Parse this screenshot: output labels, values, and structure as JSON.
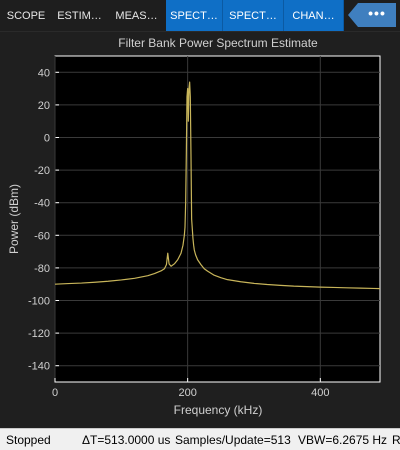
{
  "toolstrip": {
    "tabs": [
      {
        "label": "SCOPE",
        "active": false
      },
      {
        "label": "ESTIM…",
        "active": false
      },
      {
        "label": "MEAS…",
        "active": false
      },
      {
        "label": "SPECT…",
        "active": true
      },
      {
        "label": "SPECT…",
        "active": true
      },
      {
        "label": "CHAN…",
        "active": true
      }
    ],
    "more_label": "•••"
  },
  "status": {
    "state": "Stopped",
    "delta_t": "ΔT=513.0000 us",
    "samples_update": "Samples/Update=513",
    "vbw": "VBW=6.2675 Hz",
    "overflow_char": "R"
  },
  "colors": {
    "accent": "#0f6fc6",
    "trace": "#c8b55a",
    "axes_bg": "#000000",
    "grid": "#3a3a3a",
    "text": "#d0d0d0"
  },
  "chart_data": {
    "type": "line",
    "title": "Filter Bank Power Spectrum Estimate",
    "xlabel": "Frequency (kHz)",
    "ylabel": "Power (dBm)",
    "xlim": [
      0,
      490
    ],
    "ylim": [
      -150,
      50
    ],
    "xticks": [
      0,
      200,
      400
    ],
    "yticks": [
      40,
      20,
      0,
      -20,
      -40,
      -60,
      -80,
      -100,
      -120,
      -140
    ],
    "grid": true,
    "series": [
      {
        "x": [
          0,
          20,
          40,
          60,
          80,
          100,
          120,
          140,
          150,
          160,
          165,
          168,
          170,
          172,
          175,
          180,
          185,
          190,
          193,
          195,
          196,
          197,
          198,
          199,
          200,
          201,
          202,
          203,
          204,
          205,
          206,
          207,
          208,
          209,
          210,
          212,
          215,
          220,
          225,
          230,
          240,
          250,
          260,
          280,
          300,
          320,
          340,
          360,
          380,
          400,
          420,
          440,
          460,
          480,
          490
        ],
        "y": [
          -90,
          -89.6,
          -89.3,
          -88.8,
          -88.2,
          -87.4,
          -86.4,
          -84.8,
          -83.5,
          -81.8,
          -80.5,
          -78,
          -71,
          -77.5,
          -79,
          -77.5,
          -75,
          -71,
          -66,
          -60,
          -55,
          -40,
          -10,
          25,
          30,
          10,
          30,
          34,
          25,
          -10,
          -50,
          -56,
          -62,
          -66,
          -69,
          -72,
          -75,
          -78,
          -80.5,
          -82,
          -84.5,
          -86,
          -87.2,
          -88.5,
          -89.5,
          -90.2,
          -90.7,
          -91.2,
          -91.5,
          -91.8,
          -92,
          -92.2,
          -92.4,
          -92.6,
          -92.7
        ]
      }
    ]
  }
}
